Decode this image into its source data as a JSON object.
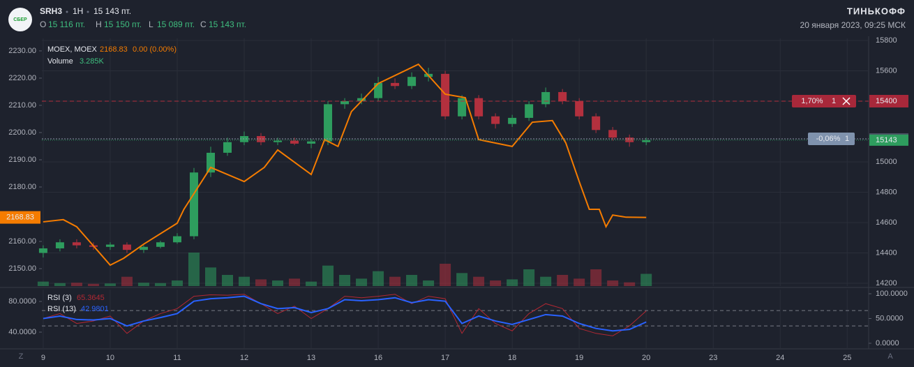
{
  "header": {
    "logo": "СБЕР",
    "ticker": "SRH3",
    "interval": "1H",
    "price": "15 143 пт.",
    "ohlc": [
      {
        "key": "O",
        "value": "15 116 пт."
      },
      {
        "key": "H",
        "value": "15 150 пт."
      },
      {
        "key": "L",
        "value": "15 089 пт."
      },
      {
        "key": "C",
        "value": "15 143 пт."
      }
    ],
    "broker": "ТИНЬКОФФ",
    "datetime": "20 января 2023, 09:25 МСК",
    "corner_left": "Z",
    "corner_right": "A"
  },
  "chart_data": [
    {
      "type": "candlestick",
      "x": [
        0,
        0.25,
        0.5,
        0.75,
        1,
        1.25,
        1.5,
        1.75,
        2,
        2.25,
        2.5,
        2.75,
        3,
        3.25,
        3.5,
        3.75,
        4,
        4.25,
        4.5,
        4.75,
        5,
        5.25,
        5.5,
        5.75,
        6,
        6.25,
        6.5,
        6.75,
        7,
        7.25,
        7.5,
        7.75,
        8,
        8.25,
        8.5,
        8.75,
        9
      ],
      "open": [
        14400,
        14430,
        14470,
        14450,
        14440,
        14455,
        14420,
        14440,
        14470,
        14510,
        14930,
        15060,
        15130,
        15170,
        15130,
        15140,
        15120,
        15135,
        15380,
        15400,
        15420,
        15520,
        15500,
        15560,
        15580,
        15300,
        15420,
        15300,
        15250,
        15290,
        15380,
        15460,
        15400,
        15300,
        15210,
        15160,
        15130
      ],
      "high": [
        14450,
        14490,
        14490,
        14470,
        14470,
        14470,
        14450,
        14480,
        14530,
        14960,
        15100,
        15160,
        15200,
        15190,
        15160,
        15160,
        15150,
        15400,
        15420,
        15450,
        15560,
        15550,
        15590,
        15620,
        15600,
        15440,
        15440,
        15320,
        15310,
        15400,
        15490,
        15480,
        15420,
        15320,
        15230,
        15180,
        15160
      ],
      "low": [
        14370,
        14410,
        14430,
        14420,
        14420,
        14400,
        14400,
        14430,
        14460,
        14490,
        14900,
        15040,
        15110,
        15110,
        15110,
        15110,
        15090,
        15110,
        15350,
        15380,
        15400,
        15480,
        15480,
        15530,
        15280,
        15280,
        15280,
        15220,
        15230,
        15270,
        15360,
        15380,
        15280,
        15190,
        15140,
        15100,
        15110
      ],
      "close": [
        14430,
        14470,
        14450,
        14440,
        14455,
        14420,
        14440,
        14470,
        14510,
        14930,
        15060,
        15130,
        15170,
        15130,
        15140,
        15120,
        15135,
        15380,
        15400,
        15420,
        15520,
        15500,
        15560,
        15580,
        15300,
        15420,
        15300,
        15250,
        15290,
        15380,
        15460,
        15400,
        15300,
        15210,
        15160,
        15130,
        15143
      ],
      "up_color": "#2e9d5e",
      "down_color": "#b3303e",
      "xlim": [
        -0.02,
        12.32
      ],
      "xticks": [
        {
          "value": 0,
          "label": "9"
        },
        {
          "value": 1,
          "label": "10"
        },
        {
          "value": 2,
          "label": "11"
        },
        {
          "value": 3,
          "label": "12"
        },
        {
          "value": 4,
          "label": "13"
        },
        {
          "value": 5,
          "label": "16"
        },
        {
          "value": 6,
          "label": "17"
        },
        {
          "value": 7,
          "label": "18"
        },
        {
          "value": 8,
          "label": "19"
        },
        {
          "value": 9,
          "label": "20"
        },
        {
          "value": 10,
          "label": "23"
        },
        {
          "value": 11,
          "label": "24"
        },
        {
          "value": 12,
          "label": "25"
        }
      ],
      "ylim": [
        14181.6,
        15813.8
      ],
      "yticks": [
        15800,
        15600,
        15400,
        15000,
        14800,
        14600,
        14400,
        14200
      ],
      "y2lim": [
        2143.6,
        2234.6
      ],
      "y2ticks": [
        {
          "value": 2230,
          "label": "2230.00"
        },
        {
          "value": 2220,
          "label": "2220.00"
        },
        {
          "value": 2210,
          "label": "2210.00"
        },
        {
          "value": 2200,
          "label": "2200.00"
        },
        {
          "value": 2190,
          "label": "2190.00"
        },
        {
          "value": 2180,
          "label": "2180.00"
        },
        {
          "value": 2160,
          "label": "2160.00"
        },
        {
          "value": 2150,
          "label": "2150.00"
        }
      ],
      "grid": true,
      "volume": {
        "name": "Volume",
        "last_label": "3.285K",
        "values": [
          1200,
          800,
          900,
          600,
          700,
          2500,
          900,
          800,
          1500,
          9000,
          5000,
          3000,
          2500,
          1800,
          1500,
          2000,
          1200,
          5500,
          3000,
          2000,
          4000,
          2500,
          3000,
          1500,
          6000,
          3500,
          2500,
          1500,
          1800,
          4500,
          2500,
          3000,
          2000,
          4500,
          1500,
          1000,
          3285
        ]
      },
      "overlay": {
        "name": "MOEX, MOEX",
        "axis": "y2",
        "color": "#f57c00",
        "change_label": "0.00 (0.00%)",
        "x": [
          0,
          0.3,
          0.5,
          1.0,
          1.2,
          1.5,
          2.0,
          2.1,
          2.5,
          3.0,
          3.3,
          3.5,
          4.0,
          4.2,
          4.4,
          4.6,
          5.0,
          5.6,
          6.0,
          6.3,
          6.5,
          7.0,
          7.3,
          7.6,
          7.8,
          8.0,
          8.15,
          8.3,
          8.4,
          8.5,
          8.7,
          9.0
        ],
        "values": [
          2167.2,
          2168,
          2165.4,
          2151.3,
          2153.8,
          2159,
          2166.7,
          2171.8,
          2187.2,
          2182,
          2187.2,
          2193.6,
          2184.6,
          2197.4,
          2194.9,
          2207.7,
          2218,
          2225.1,
          2214.1,
          2212.8,
          2197.4,
          2194.9,
          2203.8,
          2204.4,
          2196.2,
          2182,
          2171.8,
          2171.8,
          2165.4,
          2169.7,
          2168.9,
          2168.83
        ]
      },
      "last_price": 15143,
      "order": {
        "price": 15400,
        "percent": "1,70%",
        "qty": "1"
      },
      "position": {
        "price": 15152,
        "percent": "-0,06%",
        "qty": "1"
      }
    },
    {
      "type": "line",
      "x": [
        0,
        0.25,
        0.5,
        0.75,
        1,
        1.25,
        1.5,
        1.75,
        2,
        2.25,
        2.5,
        2.75,
        3,
        3.25,
        3.5,
        3.75,
        4,
        4.25,
        4.5,
        4.75,
        5,
        5.25,
        5.5,
        5.75,
        6,
        6.25,
        6.5,
        6.75,
        7,
        7.25,
        7.5,
        7.75,
        8,
        8.25,
        8.5,
        8.75,
        9
      ],
      "xlim": [
        -0.02,
        12.32
      ],
      "ylim": [
        18.2,
        95.5
      ],
      "yticks": [
        {
          "value": 80,
          "label": "80.0000"
        },
        {
          "value": 40,
          "label": "40.0000"
        }
      ],
      "y2lim": [
        -11.3,
        108.5
      ],
      "y2ticks": [
        {
          "value": 100,
          "label": "100.0000"
        },
        {
          "value": 50,
          "label": "50.0000"
        },
        {
          "value": 0,
          "label": "0.0000"
        }
      ],
      "levels": [
        66,
        35
      ],
      "series": [
        {
          "name": "RSI (3)",
          "color": "#b22833",
          "axis": "y2",
          "values": [
            50,
            60,
            40,
            45,
            55,
            20,
            45,
            60,
            70,
            95,
            98,
            97,
            99,
            80,
            60,
            75,
            50,
            70,
            95,
            92,
            95,
            99,
            80,
            95,
            90,
            20,
            70,
            40,
            25,
            60,
            80,
            70,
            30,
            20,
            15,
            35,
            65.3645
          ]
        },
        {
          "name": "RSI (13)",
          "color": "#2962ff",
          "axis": "y2",
          "values": [
            50,
            55,
            48,
            47,
            50,
            35,
            45,
            52,
            60,
            85,
            90,
            92,
            95,
            80,
            70,
            72,
            62,
            70,
            88,
            86,
            88,
            92,
            82,
            88,
            85,
            40,
            55,
            45,
            38,
            48,
            58,
            55,
            40,
            30,
            25,
            28,
            42.9801
          ]
        }
      ]
    }
  ]
}
